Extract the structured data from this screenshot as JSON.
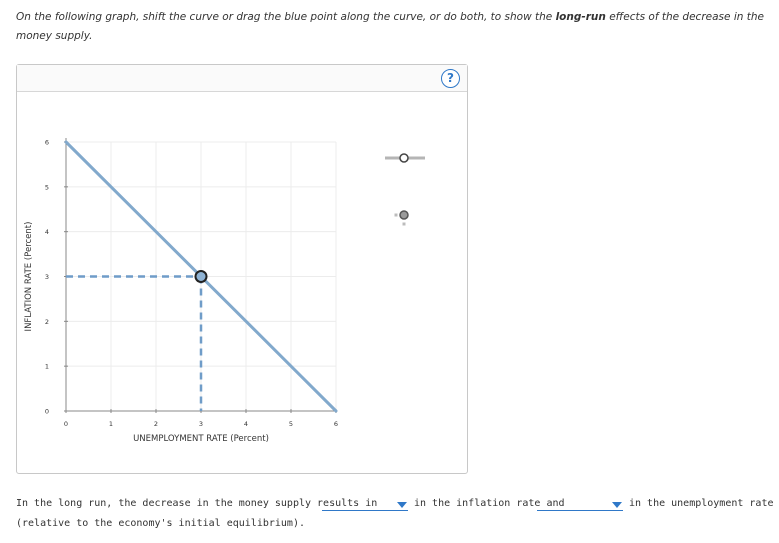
{
  "instructions": {
    "before": "On the following graph, shift the curve or drag the blue point along the curve, or do both, to show the ",
    "bold": "long-run",
    "after": " effects of the decrease in the money supply."
  },
  "help": {
    "label": "?"
  },
  "chart_data": {
    "type": "line",
    "xlabel": "UNEMPLOYMENT RATE (Percent)",
    "ylabel": "INFLATION RATE (Percent)",
    "xlim": [
      0,
      6
    ],
    "ylim": [
      0,
      6
    ],
    "x_ticks": [
      "0",
      "1",
      "2",
      "3",
      "4",
      "5",
      "6"
    ],
    "y_ticks": [
      "0",
      "1",
      "2",
      "3",
      "4",
      "5",
      "6"
    ],
    "grid": true,
    "curve": {
      "points": [
        [
          0,
          6
        ],
        [
          6,
          0
        ]
      ],
      "color": "#82a9cc"
    },
    "point": {
      "x": 3,
      "y": 3,
      "color": "#8fb3d4"
    },
    "guide_color": "#6f9cc8"
  },
  "tools": {
    "curve_tool_icon": "curve-tool-icon",
    "point_tool_icon": "point-tool-icon"
  },
  "answer": {
    "line1_part1": "In the long run, the decrease in the money supply results in",
    "dropdown1_value": "",
    "line1_part2": "in the inflation rate and",
    "dropdown2_value": "",
    "line1_part3": "in the unemployment rate",
    "line2": "(relative to the economy's initial equilibrium)."
  },
  "colors": {
    "accent": "#2f78c8",
    "panel_border": "#c8c8c8"
  }
}
